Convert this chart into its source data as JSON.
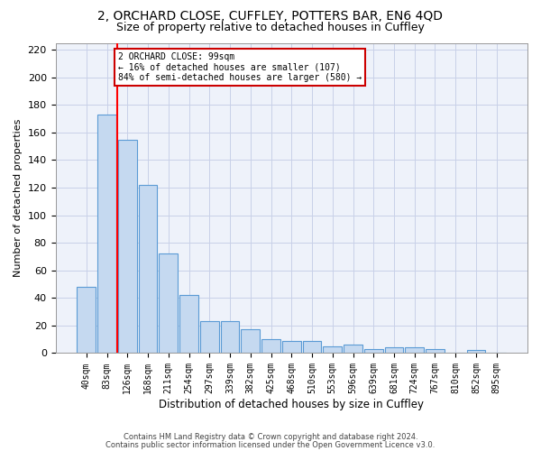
{
  "title1": "2, ORCHARD CLOSE, CUFFLEY, POTTERS BAR, EN6 4QD",
  "title2": "Size of property relative to detached houses in Cuffley",
  "xlabel": "Distribution of detached houses by size in Cuffley",
  "ylabel": "Number of detached properties",
  "categories": [
    "40sqm",
    "83sqm",
    "126sqm",
    "168sqm",
    "211sqm",
    "254sqm",
    "297sqm",
    "339sqm",
    "382sqm",
    "425sqm",
    "468sqm",
    "510sqm",
    "553sqm",
    "596sqm",
    "639sqm",
    "681sqm",
    "724sqm",
    "767sqm",
    "810sqm",
    "852sqm",
    "895sqm"
  ],
  "values": [
    48,
    173,
    155,
    122,
    72,
    42,
    23,
    23,
    17,
    10,
    9,
    9,
    5,
    6,
    3,
    4,
    4,
    3,
    0,
    2,
    0
  ],
  "bar_color": "#c5d9f0",
  "bar_edgecolor": "#5b9bd5",
  "red_line_index": 1.5,
  "annotation_text": "2 ORCHARD CLOSE: 99sqm\n← 16% of detached houses are smaller (107)\n84% of semi-detached houses are larger (580) →",
  "annotation_box_facecolor": "#ffffff",
  "annotation_box_edgecolor": "#cc0000",
  "footer1": "Contains HM Land Registry data © Crown copyright and database right 2024.",
  "footer2": "Contains public sector information licensed under the Open Government Licence v3.0.",
  "bg_color": "#eef2fa",
  "grid_color": "#c8d0e8",
  "ylim_max": 225,
  "yticks": [
    0,
    20,
    40,
    60,
    80,
    100,
    120,
    140,
    160,
    180,
    200,
    220
  ],
  "title1_fontsize": 10,
  "title2_fontsize": 9,
  "tick_fontsize": 7,
  "ylabel_fontsize": 8,
  "xlabel_fontsize": 8.5,
  "footer_fontsize": 6,
  "annot_fontsize": 7
}
